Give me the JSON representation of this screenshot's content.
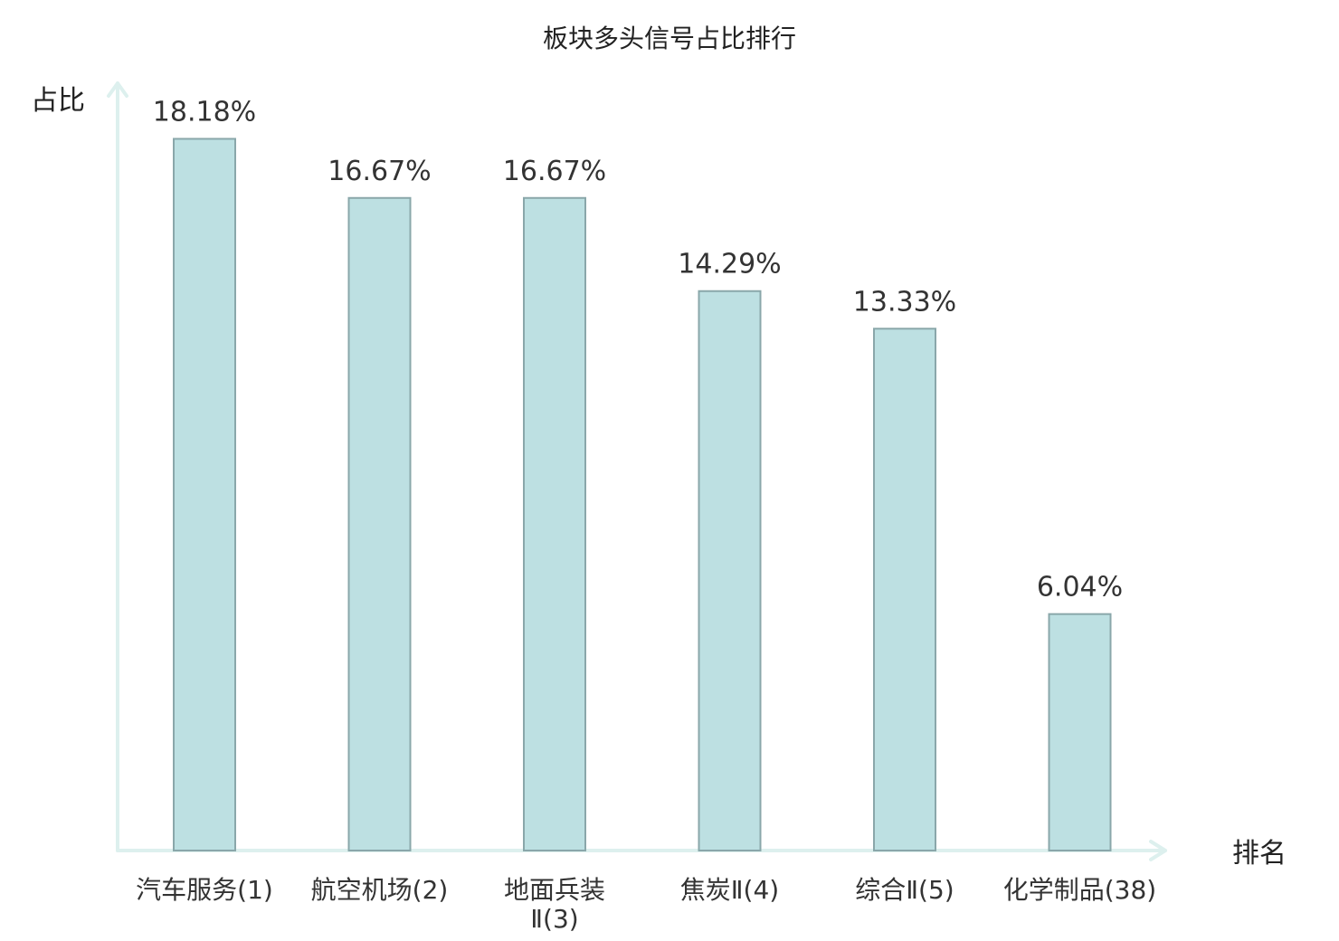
{
  "chart_data": {
    "type": "bar",
    "title": "板块多头信号占比排行",
    "ylabel": "占比",
    "xlabel": "排名",
    "categories": [
      "汽车服务(1)",
      "航空机场(2)",
      "地面兵装Ⅱ(3)",
      "焦炭Ⅱ(4)",
      "综合Ⅱ(5)",
      "化学制品(38)"
    ],
    "values": [
      18.18,
      16.67,
      16.67,
      14.29,
      13.33,
      6.04
    ],
    "value_labels": [
      "18.18%",
      "16.67%",
      "16.67%",
      "14.29%",
      "13.33%",
      "6.04%"
    ],
    "highlight_category": "化学制品(38)",
    "ylim": [
      0,
      19.6
    ],
    "grid": false,
    "colors": {
      "bar_fill": "#bde0e2",
      "bar_stroke": "#8aa7aa",
      "axis": "#ddf0ee",
      "label": "#333333",
      "highlight": "#e41a1c"
    }
  }
}
